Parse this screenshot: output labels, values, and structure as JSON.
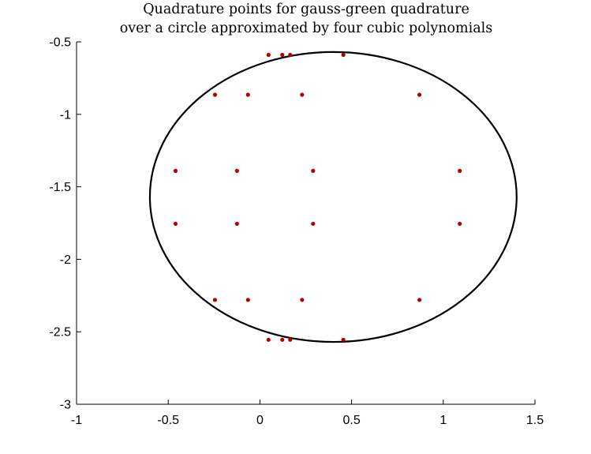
{
  "chart_data": {
    "type": "scatter",
    "title": "Quadrature points for gauss-green quadrature",
    "subtitle": "over a circle approximated by four cubic polynomials",
    "xlabel": "",
    "ylabel": "",
    "xlim": [
      -1,
      1.5
    ],
    "ylim": [
      -3,
      -0.5
    ],
    "y_reversed": true,
    "x_ticks": [
      "-1",
      "-0.5",
      "0",
      "0.5",
      "1",
      "1.5"
    ],
    "y_ticks": [
      "-0.5",
      "-1",
      "-1.5",
      "-2",
      "-2.5",
      "-3"
    ],
    "grid": false,
    "legend": "none",
    "colors": {
      "points": "#b00000",
      "curve": "#000000",
      "axes": "#000000"
    },
    "curve": {
      "name": "",
      "shape": "circle",
      "center": [
        0.4,
        -1.57
      ],
      "rx": 1.0,
      "ry": 1.0
    },
    "series": [
      {
        "name": "",
        "points": [
          [
            0.047,
            -0.59
          ],
          [
            0.122,
            -0.59
          ],
          [
            0.165,
            -0.59
          ],
          [
            0.455,
            -0.59
          ],
          [
            -0.245,
            -0.865
          ],
          [
            -0.065,
            -0.865
          ],
          [
            0.23,
            -0.865
          ],
          [
            0.87,
            -0.865
          ],
          [
            -0.46,
            -1.39
          ],
          [
            -0.125,
            -1.39
          ],
          [
            0.29,
            -1.39
          ],
          [
            1.09,
            -1.39
          ],
          [
            -0.46,
            -1.755
          ],
          [
            -0.125,
            -1.755
          ],
          [
            0.29,
            -1.755
          ],
          [
            1.09,
            -1.755
          ],
          [
            -0.245,
            -2.28
          ],
          [
            -0.065,
            -2.28
          ],
          [
            0.23,
            -2.28
          ],
          [
            0.87,
            -2.28
          ],
          [
            0.047,
            -2.555
          ],
          [
            0.122,
            -2.555
          ],
          [
            0.165,
            -2.555
          ],
          [
            0.455,
            -2.555
          ]
        ]
      }
    ]
  }
}
